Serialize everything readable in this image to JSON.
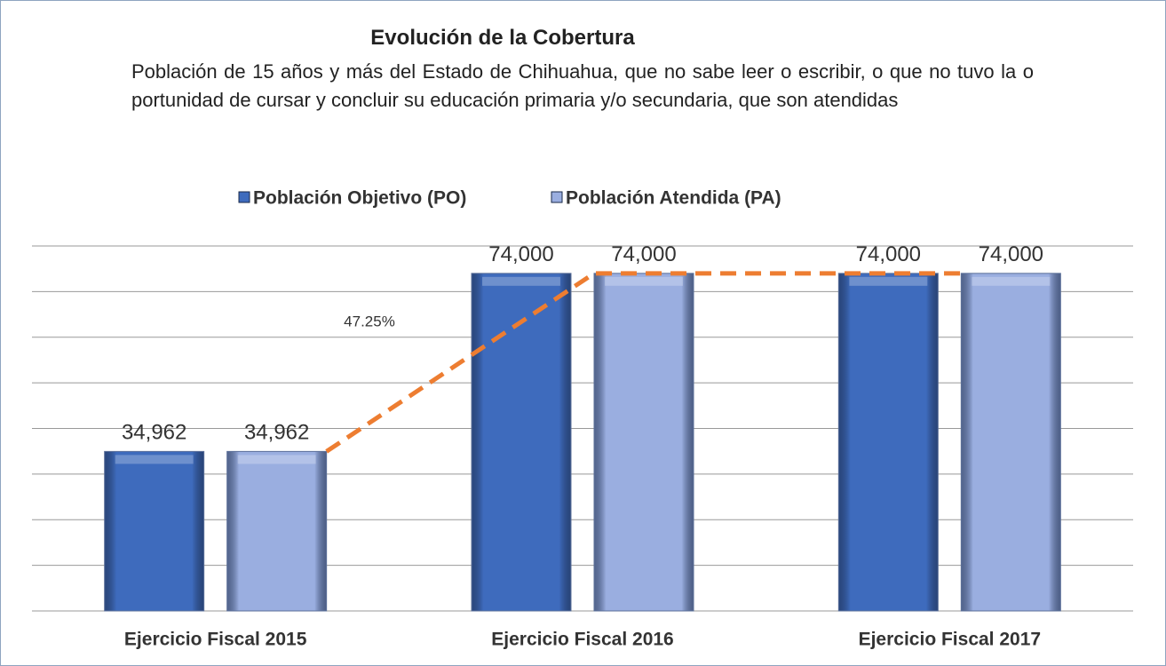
{
  "chart_data": {
    "type": "bar",
    "title": "Evolución de la Cobertura",
    "subtitle": "Población de 15 años y más del Estado de Chihuahua, que no sabe leer o escribir, o que no tuvo la o portunidad de cursar y concluir su educación primaria y/o secundaria, que son atendidas",
    "annotation": "47.25%",
    "categories": [
      "Ejercicio Fiscal 2015",
      "Ejercicio Fiscal 2016",
      "Ejercicio Fiscal 2017"
    ],
    "series": [
      {
        "name": "Población Objetivo (PO)",
        "color": "#3e6bbd",
        "values": [
          34962,
          74000,
          74000
        ],
        "value_labels": [
          "34,962",
          "74,000",
          "74,000"
        ]
      },
      {
        "name": "Población Atendida (PA)",
        "color": "#9aaee0",
        "values": [
          34962,
          74000,
          74000
        ],
        "value_labels": [
          "34,962",
          "74,000",
          "74,000"
        ]
      }
    ],
    "trend_color": "#ed7d31",
    "ylim": [
      0,
      80000
    ],
    "yticks": [
      0,
      10000,
      20000,
      30000,
      40000,
      50000,
      60000,
      70000,
      80000
    ],
    "grid": true,
    "legend": "top"
  }
}
